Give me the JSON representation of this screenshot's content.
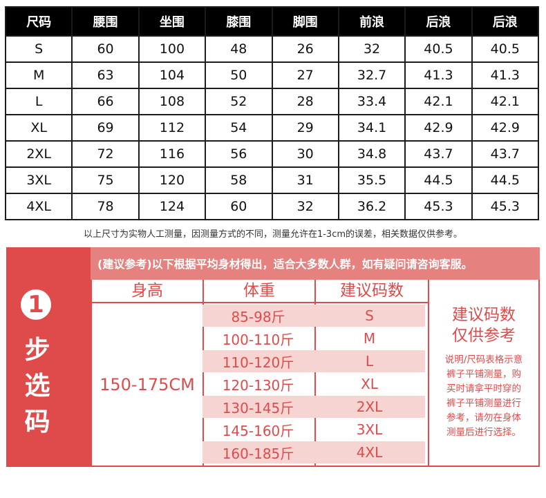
{
  "size_table": {
    "headers": [
      "尺码",
      "腰围",
      "坐围",
      "膝围",
      "脚围",
      "前浪",
      "后浪",
      "后浪"
    ],
    "rows": [
      [
        "S",
        "60",
        "100",
        "48",
        "26",
        "32",
        "40.5",
        "40.5"
      ],
      [
        "M",
        "63",
        "104",
        "50",
        "27",
        "32.7",
        "41.3",
        "41.3"
      ],
      [
        "L",
        "66",
        "108",
        "52",
        "28",
        "33.4",
        "42.1",
        "42.1"
      ],
      [
        "XL",
        "69",
        "112",
        "54",
        "29",
        "34.1",
        "42.9",
        "42.9"
      ],
      [
        "2XL",
        "72",
        "116",
        "56",
        "30",
        "34.8",
        "43.7",
        "43.7"
      ],
      [
        "3XL",
        "75",
        "120",
        "58",
        "31",
        "35.5",
        "44.5",
        "44.5"
      ],
      [
        "4XL",
        "78",
        "124",
        "60",
        "32",
        "36.2",
        "45.3",
        "45.3"
      ]
    ]
  },
  "note": "以上尺寸为实物人工测量，因测量方式的不同，测量允许在1-3cm的误差，相关数据仅供参考。",
  "guide": {
    "step_number": "1",
    "step_words": [
      "步",
      "选",
      "码"
    ],
    "banner": "(建议参考)以下根据平均身材得出，适合大多数人群，如有疑问请咨询客服。",
    "col_height": "身高",
    "col_weight": "体重",
    "col_size": "建议码数",
    "height_range": "150-175CM",
    "rows": [
      {
        "weight": "85-98斤",
        "size": "S"
      },
      {
        "weight": "100-110斤",
        "size": "M"
      },
      {
        "weight": "110-120斤",
        "size": "L"
      },
      {
        "weight": "120-130斤",
        "size": "XL"
      },
      {
        "weight": "130-145斤",
        "size": "2XL"
      },
      {
        "weight": "145-160斤",
        "size": "3XL"
      },
      {
        "weight": "160-185斤",
        "size": "4XL"
      }
    ],
    "advice_title_line1": "建议码数",
    "advice_title_line2": "仅供参考",
    "advice_lines": [
      "说明/尺码表格示意",
      "裤子平铺测量，购",
      "买时请拿平时穿的",
      "裤子平铺测量进行",
      "参考，请勿在身体",
      "测量后进行选择。"
    ]
  },
  "colors": {
    "accent": "#df4b4b",
    "banner": "#e5827f",
    "stripe": "#f5d4d2",
    "header": "#000000"
  }
}
